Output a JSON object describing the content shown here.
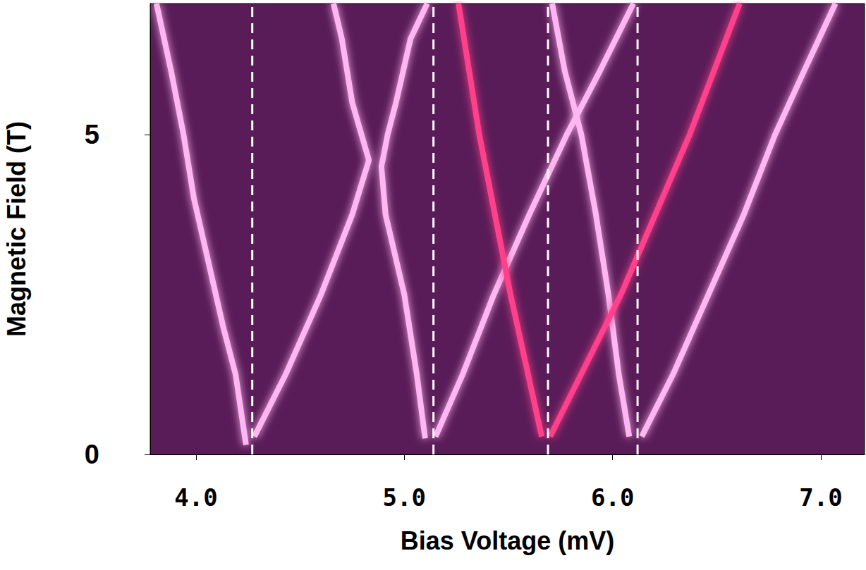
{
  "chart_data": {
    "type": "line",
    "x_label": "Bias Voltage (mV)",
    "y_label": "Magnetic Field (T)",
    "xlim": [
      3.78,
      7.21
    ],
    "ylim": [
      0,
      7.05
    ],
    "xticks": [
      {
        "value": 4,
        "label": "4.0"
      },
      {
        "value": 5,
        "label": "5.0"
      },
      {
        "value": 6,
        "label": "6.0"
      },
      {
        "value": 7,
        "label": "7.0"
      }
    ],
    "yticks": [
      0,
      5
    ],
    "grid": false,
    "series": [
      {
        "color": "#ffb6f2",
        "x": [
          4.24,
          4.19,
          4.13,
          4.06,
          3.99,
          3.94,
          3.88,
          3.81
        ],
        "values": [
          0.15,
          1.25,
          2.0,
          3.0,
          4.0,
          5.0,
          6.0,
          7.05
        ]
      },
      {
        "color": "#ffb6f2",
        "x": [
          4.28,
          4.43,
          4.6,
          4.75,
          4.83,
          4.75,
          4.7,
          4.66
        ],
        "values": [
          0.28,
          1.25,
          2.5,
          3.75,
          4.6,
          5.5,
          6.5,
          7.05
        ]
      },
      {
        "color": "#ffb6f2",
        "x": [
          5.1,
          5.06,
          5.0,
          4.91,
          4.89,
          4.92,
          4.96,
          5.03,
          5.11
        ],
        "values": [
          0.25,
          1.25,
          2.5,
          3.75,
          4.5,
          5.0,
          5.5,
          6.5,
          7.05
        ]
      },
      {
        "color": "#ffb6f2",
        "x": [
          5.15,
          5.28,
          5.43,
          5.6,
          5.78,
          5.94,
          6.1
        ],
        "values": [
          0.28,
          1.25,
          2.5,
          3.75,
          5.0,
          6.0,
          7.05
        ]
      },
      {
        "color": "#ffb6f2",
        "x": [
          6.08,
          6.03,
          5.98,
          5.92,
          5.85,
          5.77,
          5.71
        ],
        "values": [
          0.28,
          1.25,
          2.5,
          3.75,
          5.0,
          6.0,
          7.05
        ]
      },
      {
        "color": "#ffb6f2",
        "x": [
          6.14,
          6.29,
          6.46,
          6.63,
          6.78,
          6.92,
          7.07
        ],
        "values": [
          0.28,
          1.25,
          2.5,
          3.75,
          5.0,
          6.0,
          7.05
        ]
      },
      {
        "color": "#ff3f8a",
        "x": [
          5.66,
          5.51,
          5.36,
          5.26
        ],
        "values": [
          0.28,
          2.5,
          5.0,
          7.05
        ]
      },
      {
        "color": "#ff3f8a",
        "x": [
          5.7,
          6.04,
          6.37,
          6.61
        ],
        "values": [
          0.28,
          2.5,
          5.0,
          7.05
        ]
      }
    ],
    "reference_lines": {
      "x": [
        4.27,
        5.14,
        5.69,
        6.12
      ],
      "color": "#ffffff",
      "line_style": "dashed"
    }
  }
}
